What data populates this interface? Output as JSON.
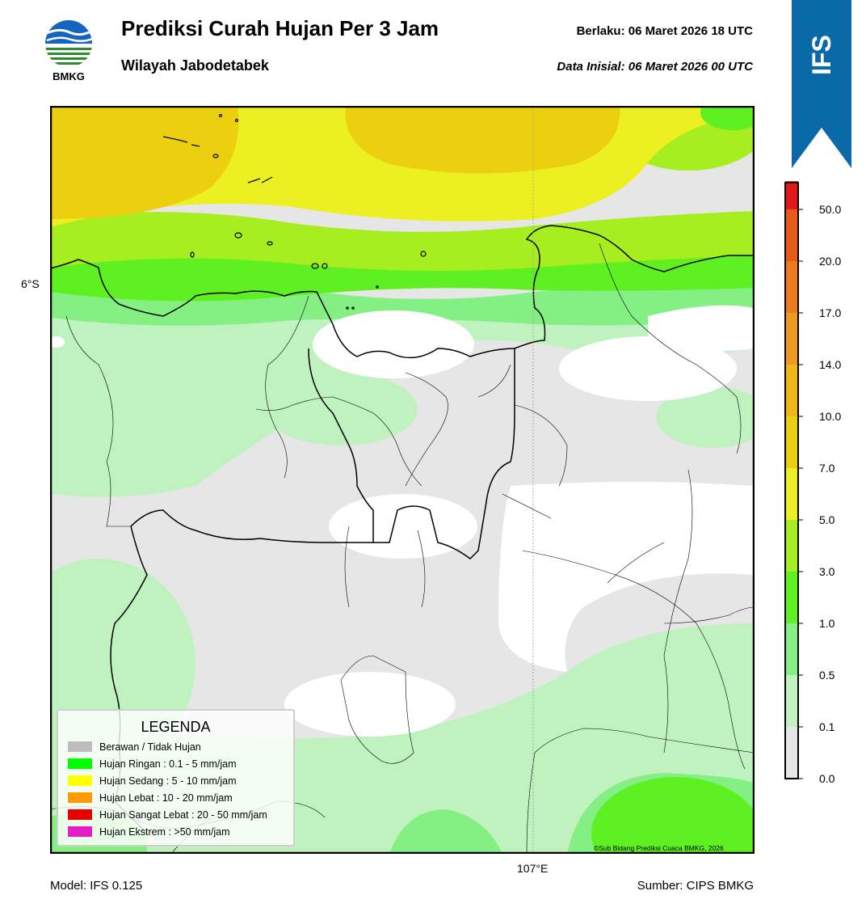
{
  "header": {
    "org_logo_text": "BMKG",
    "title": "Prediksi Curah Hujan Per 3 Jam",
    "region": "Wilayah Jabodetabek",
    "valid_text": "Berlaku:  06 Maret 2026 18 UTC",
    "init_text": "Data Inisial:  06 Maret 2026 00 UTC"
  },
  "ribbon": {
    "label": "IFS",
    "color": "#0a6aa8"
  },
  "map": {
    "lat_label": "6°S",
    "lon_label": "107°E",
    "credit": "©Sub Bidang Prediksi Cuaca BMKG, 2026"
  },
  "legend": {
    "title": "LEGENDA",
    "items": [
      {
        "label": "Berawan / Tidak Hujan",
        "color": "#bdbdbd"
      },
      {
        "label": "Hujan Ringan : 0.1 - 5 mm/jam",
        "color": "#00ff00"
      },
      {
        "label": "Hujan Sedang : 5 - 10 mm/jam",
        "color": "#ffff00"
      },
      {
        "label": "Hujan Lebat : 10 - 20 mm/jam",
        "color": "#ff9900"
      },
      {
        "label": "Hujan Sangat Lebat : 20 - 50 mm/jam",
        "color": "#e60000"
      },
      {
        "label": "Hujan Ekstrem : >50 mm/jam",
        "color": "#e61ec8"
      }
    ]
  },
  "colorbar": {
    "tick_labels": [
      "0.0",
      "0.1",
      "0.5",
      "1.0",
      "3.0",
      "5.0",
      "7.0",
      "10.0",
      "14.0",
      "17.0",
      "20.0",
      "50.0"
    ],
    "colors": [
      "#e6e6e6",
      "#bff2bf",
      "#84f084",
      "#5ef020",
      "#a6ee20",
      "#ecf020",
      "#ecd010",
      "#eeb818",
      "#ee9a20",
      "#ee7a20",
      "#e85a18",
      "#e21818",
      "#e21cc8"
    ]
  },
  "footer": {
    "model": "Model: IFS 0.125",
    "source": "Sumber: CIPS BMKG"
  }
}
